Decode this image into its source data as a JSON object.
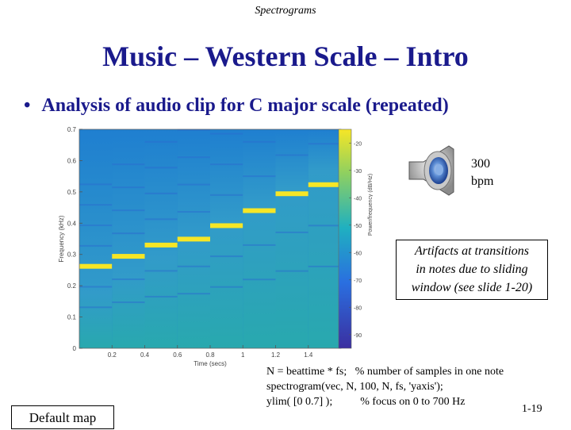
{
  "header": {
    "label": "Spectrograms"
  },
  "title": "Music – Western Scale – Intro",
  "bullet": "Analysis of audio clip for C major scale (repeated)",
  "tempo": {
    "value": "300",
    "unit": "bpm"
  },
  "artifact_note": [
    "Artifacts at transitions",
    "in notes due to sliding",
    "window (see slide 1-20)"
  ],
  "code": [
    "N = beattime * fs;   % number of samples in one note",
    "spectrogram(vec, N, 100, N, fs, 'yaxis');",
    "ylim( [0 0.7] );          % focus on 0 to 700 Hz"
  ],
  "default_map_label": "Default map",
  "slide_number": "1-19",
  "icons": {
    "speaker": "speaker-icon"
  },
  "chart_data": {
    "type": "heatmap",
    "xlabel": "Time (secs)",
    "ylabel": "Frequency (kHz)",
    "colorbar_label": "Power/frequency (dB/Hz)",
    "xlim": [
      0,
      1.6
    ],
    "ylim": [
      0,
      0.7
    ],
    "x_ticks": [
      "0.2",
      "0.4",
      "0.6",
      "0.8",
      "1",
      "1.2",
      "1.4"
    ],
    "y_ticks": [
      "0",
      "0.1",
      "0.2",
      "0.3",
      "0.4",
      "0.5",
      "0.6",
      "0.7"
    ],
    "colorbar_ticks": [
      "-20",
      "-30",
      "-40",
      "-50",
      "-60",
      "-70",
      "-80",
      "-90"
    ],
    "colorbar_range": [
      -95,
      -15
    ],
    "notes": [
      {
        "t_start": 0.0,
        "t_end": 0.2,
        "freq": 0.262
      },
      {
        "t_start": 0.2,
        "t_end": 0.4,
        "freq": 0.294
      },
      {
        "t_start": 0.4,
        "t_end": 0.6,
        "freq": 0.33
      },
      {
        "t_start": 0.6,
        "t_end": 0.8,
        "freq": 0.349
      },
      {
        "t_start": 0.8,
        "t_end": 1.0,
        "freq": 0.392
      },
      {
        "t_start": 1.0,
        "t_end": 1.2,
        "freq": 0.44
      },
      {
        "t_start": 1.2,
        "t_end": 1.4,
        "freq": 0.494
      },
      {
        "t_start": 1.4,
        "t_end": 1.6,
        "freq": 0.523
      }
    ],
    "colors": {
      "low": "#3b4fd8",
      "mid": "#2ab0a8",
      "high": "#f6e626",
      "background": "#1f7fd0"
    }
  }
}
